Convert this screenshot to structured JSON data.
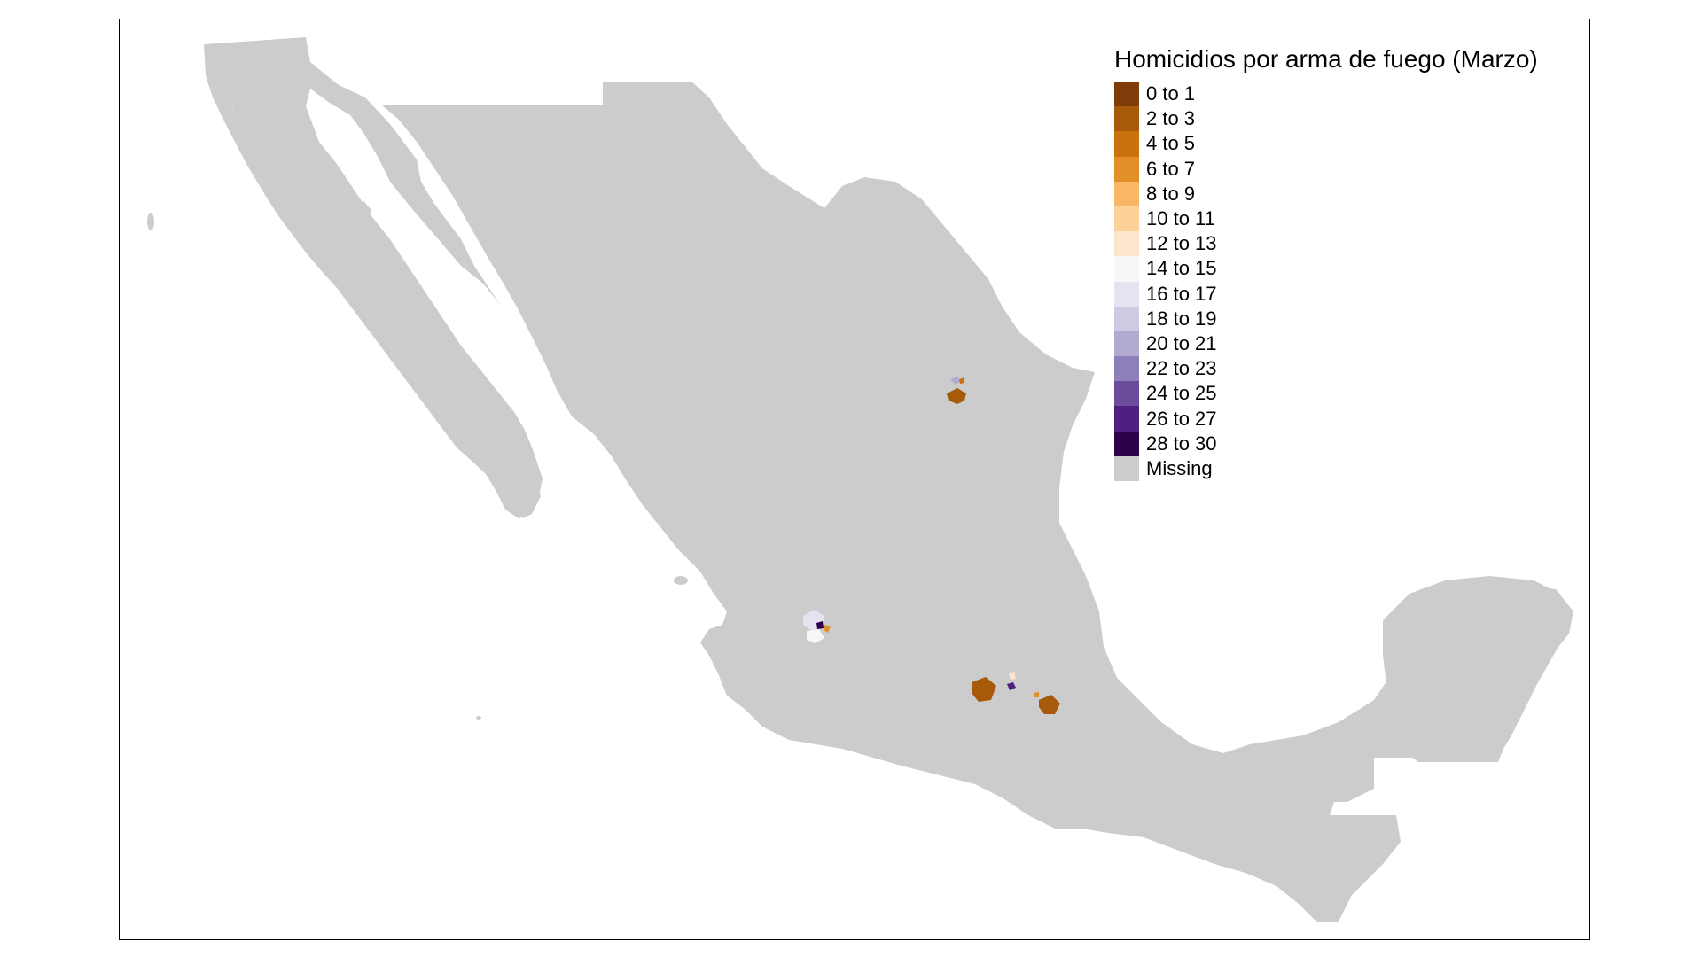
{
  "map": {
    "missing_color": "#cccccc",
    "frame_color": "#000000"
  },
  "legend": {
    "title": "Homicidios por arma de fuego (Marzo)",
    "items": [
      {
        "label": "0 to 1",
        "color": "#7f3b08"
      },
      {
        "label": "2 to 3",
        "color": "#a65a0a"
      },
      {
        "label": "4 to 5",
        "color": "#c9720e"
      },
      {
        "label": "6 to 7",
        "color": "#e28f27"
      },
      {
        "label": "8 to 9",
        "color": "#f9b664"
      },
      {
        "label": "10 to 11",
        "color": "#fdd19a"
      },
      {
        "label": "12 to 13",
        "color": "#fde6cd"
      },
      {
        "label": "14 to 15",
        "color": "#f7f7f7"
      },
      {
        "label": "16 to 17",
        "color": "#e4e3f0"
      },
      {
        "label": "18 to 19",
        "color": "#cdcbe4"
      },
      {
        "label": "20 to 21",
        "color": "#b2aad1"
      },
      {
        "label": "22 to 23",
        "color": "#8d7fb7"
      },
      {
        "label": "24 to 25",
        "color": "#6a4c9b"
      },
      {
        "label": "26 to 27",
        "color": "#4d2080"
      },
      {
        "label": "28 to 30",
        "color": "#2d004b"
      },
      {
        "label": "Missing",
        "color": "#cccccc"
      }
    ]
  }
}
